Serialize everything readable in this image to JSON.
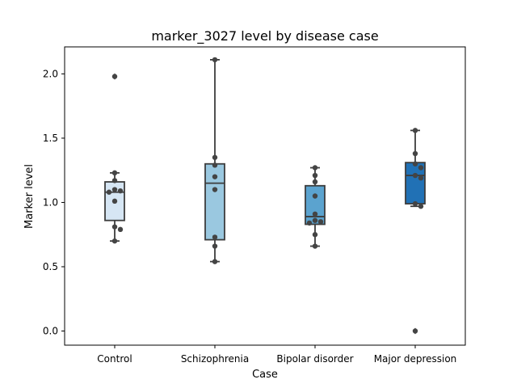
{
  "chart_data": {
    "type": "box",
    "title": "marker_3027 level by disease case",
    "xlabel": "Case",
    "ylabel": "Marker level",
    "ylim": [
      -0.11,
      2.21
    ],
    "yticks": [
      0.0,
      0.5,
      1.0,
      1.5,
      2.0
    ],
    "ytick_labels": [
      "0.0",
      "0.5",
      "1.0",
      "1.5",
      "2.0"
    ],
    "categories": [
      "Control",
      "Schizophrenia",
      "Bipolar disorder",
      "Major depression"
    ],
    "grid": false,
    "legend": "none",
    "boxes": [
      {
        "category": "Control",
        "color": "#d6e6f4",
        "q1": 0.86,
        "median": 1.08,
        "q3": 1.16,
        "whisker_low": 0.7,
        "whisker_high": 1.23,
        "outliers": [
          1.98
        ]
      },
      {
        "category": "Schizophrenia",
        "color": "#9ac8e0",
        "q1": 0.71,
        "median": 1.15,
        "q3": 1.3,
        "whisker_low": 0.54,
        "whisker_high": 2.11,
        "outliers": []
      },
      {
        "category": "Bipolar disorder",
        "color": "#5ba3cf",
        "q1": 0.83,
        "median": 0.89,
        "q3": 1.13,
        "whisker_low": 0.66,
        "whisker_high": 1.27,
        "outliers": []
      },
      {
        "category": "Major depression",
        "color": "#2171b5",
        "q1": 0.99,
        "median": 1.21,
        "q3": 1.31,
        "whisker_low": 0.97,
        "whisker_high": 1.56,
        "outliers": [
          0.0
        ]
      }
    ],
    "points": [
      {
        "category": "Control",
        "values": [
          1.98,
          1.23,
          1.17,
          1.1,
          1.09,
          1.08,
          1.01,
          0.81,
          0.79,
          0.7
        ]
      },
      {
        "category": "Schizophrenia",
        "values": [
          2.11,
          1.35,
          1.29,
          1.2,
          1.1,
          0.73,
          0.66,
          0.54
        ]
      },
      {
        "category": "Bipolar disorder",
        "values": [
          1.27,
          1.21,
          1.16,
          1.05,
          0.91,
          0.86,
          0.85,
          0.84,
          0.75,
          0.66
        ]
      },
      {
        "category": "Major depression",
        "values": [
          1.56,
          1.38,
          1.3,
          1.27,
          1.21,
          1.19,
          0.99,
          0.97,
          0.0
        ]
      }
    ]
  }
}
